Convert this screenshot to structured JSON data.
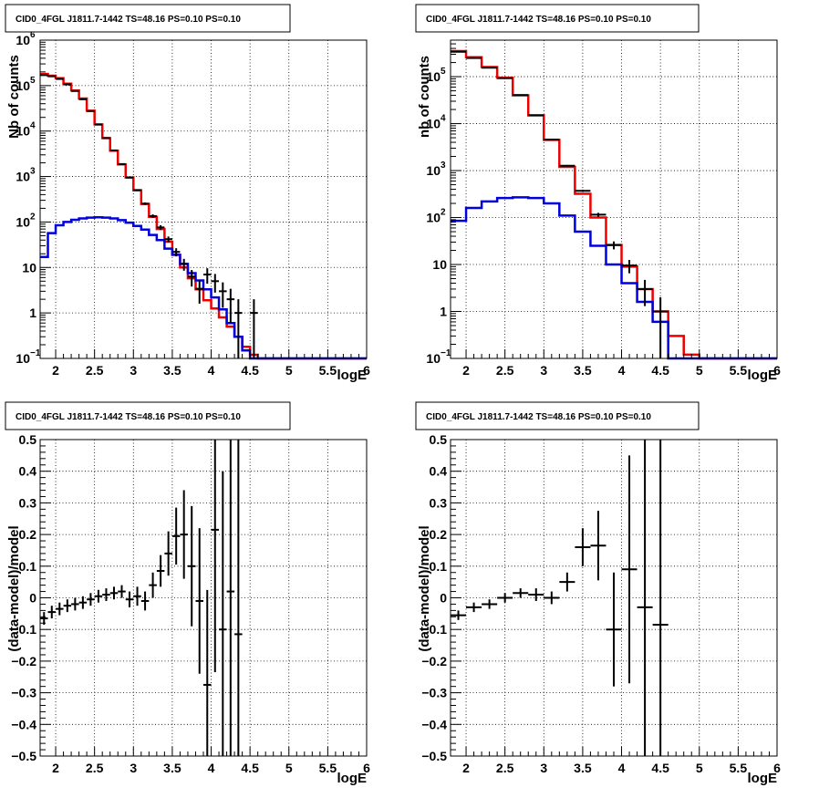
{
  "chart_data": [
    {
      "panel": "top-left",
      "type": "line",
      "title": "CID0_4FGL J1811.7-1442 TS=48.16 PS=0.10 PS=0.10",
      "xlabel": "logE",
      "ylabel": "Nb of counts",
      "log_y": true,
      "grid": true,
      "xlim": [
        1.8,
        6.0
      ],
      "ylim": [
        0.1,
        1000000
      ],
      "x_ticks": [
        "2",
        "2.5",
        "3",
        "3.5",
        "4",
        "4.5",
        "5",
        "5.5",
        "6"
      ],
      "y_ticks": [
        {
          "v": 0.1,
          "base": "10",
          "exp": "−1"
        },
        {
          "v": 1,
          "base": "1",
          "exp": ""
        },
        {
          "v": 10,
          "base": "10",
          "exp": ""
        },
        {
          "v": 100,
          "base": "10",
          "exp": "2"
        },
        {
          "v": 1000,
          "base": "10",
          "exp": "3"
        },
        {
          "v": 10000,
          "base": "10",
          "exp": "4"
        },
        {
          "v": 100000,
          "base": "10",
          "exp": "5"
        },
        {
          "v": 1000000,
          "base": "10",
          "exp": "6"
        }
      ],
      "bin_edges": [
        1.8,
        1.9,
        2.0,
        2.1,
        2.2,
        2.3,
        2.4,
        2.5,
        2.6,
        2.7,
        2.8,
        2.9,
        3.0,
        3.1,
        3.2,
        3.3,
        3.4,
        3.5,
        3.6,
        3.7,
        3.8,
        3.9,
        4.0,
        4.1,
        4.2,
        4.3,
        4.4,
        4.5,
        4.6,
        4.7,
        4.8,
        4.9,
        5.0,
        5.1,
        5.2,
        5.3,
        5.4,
        5.5,
        5.6,
        5.7,
        5.8,
        5.9,
        6.0
      ],
      "series": [
        {
          "color": "#ee0000",
          "values": [
            180000,
            165000,
            145000,
            110000,
            78000,
            52000,
            28000,
            14000,
            7000,
            3700,
            1850,
            950,
            500,
            250,
            130,
            70,
            37,
            19,
            10,
            5.8,
            3.3,
            1.9,
            1.25,
            0.8,
            0.5,
            0.3,
            0.18,
            0.12,
            0.1,
            0.1,
            0.1,
            0.1,
            0.1,
            0.1,
            0.1,
            0.1,
            0.1,
            0.1,
            0.1,
            0.1,
            0.1,
            0.1
          ]
        },
        {
          "color": "#0000dd",
          "values": [
            17,
            57,
            85,
            100,
            112,
            120,
            125,
            127,
            125,
            120,
            110,
            97,
            82,
            68,
            52,
            40,
            26,
            19,
            12,
            7.5,
            5.2,
            3.3,
            2.2,
            1.2,
            0.6,
            0.3,
            0.15,
            0.1,
            0.1,
            0.1,
            0.1,
            0.1,
            0.1,
            0.1,
            0.1,
            0.1,
            0.1,
            0.1,
            0.1,
            0.1,
            0.1,
            0.1
          ]
        }
      ],
      "data_points": [
        {
          "x": 1.85,
          "y": 170000,
          "lo": 166000,
          "hi": 174000
        },
        {
          "x": 1.95,
          "y": 160000,
          "lo": 156000,
          "hi": 164000
        },
        {
          "x": 2.05,
          "y": 140000,
          "lo": 137000,
          "hi": 143000
        },
        {
          "x": 2.15,
          "y": 106000,
          "lo": 104000,
          "hi": 108000
        },
        {
          "x": 2.25,
          "y": 76000,
          "lo": 74500,
          "hi": 77500
        },
        {
          "x": 2.35,
          "y": 50000,
          "lo": 49000,
          "hi": 51000
        },
        {
          "x": 2.45,
          "y": 27500,
          "lo": 27000,
          "hi": 28000
        },
        {
          "x": 2.55,
          "y": 13900,
          "lo": 13700,
          "hi": 14100
        },
        {
          "x": 2.65,
          "y": 7000,
          "lo": 6900,
          "hi": 7100
        },
        {
          "x": 2.75,
          "y": 3750,
          "lo": 3680,
          "hi": 3820
        },
        {
          "x": 2.85,
          "y": 1880,
          "lo": 1840,
          "hi": 1920
        },
        {
          "x": 2.95,
          "y": 950,
          "lo": 920,
          "hi": 980
        },
        {
          "x": 3.05,
          "y": 503,
          "lo": 480,
          "hi": 525
        },
        {
          "x": 3.15,
          "y": 253,
          "lo": 237,
          "hi": 269
        },
        {
          "x": 3.25,
          "y": 135,
          "lo": 123,
          "hi": 147
        },
        {
          "x": 3.35,
          "y": 76,
          "lo": 67,
          "hi": 85
        },
        {
          "x": 3.45,
          "y": 42,
          "lo": 36,
          "hi": 48
        },
        {
          "x": 3.55,
          "y": 22,
          "lo": 17.5,
          "hi": 26.5
        },
        {
          "x": 3.65,
          "y": 12,
          "lo": 8.5,
          "hi": 15.5
        },
        {
          "x": 3.75,
          "y": 6.3,
          "lo": 3.8,
          "hi": 8.8
        },
        {
          "x": 3.85,
          "y": 3.4,
          "lo": 1.6,
          "hi": 5.2
        },
        {
          "x": 3.95,
          "y": 7,
          "lo": 4.4,
          "hi": 9.6
        },
        {
          "x": 4.05,
          "y": 5,
          "lo": 2.8,
          "hi": 7.2
        },
        {
          "x": 4.15,
          "y": 3,
          "lo": 1.3,
          "hi": 4.7
        },
        {
          "x": 4.25,
          "y": 2,
          "lo": 0.6,
          "hi": 3.4
        },
        {
          "x": 4.35,
          "y": 1,
          "lo": 0.1,
          "hi": 2.0
        },
        {
          "x": 4.55,
          "y": 1,
          "lo": 0.1,
          "hi": 2.0
        }
      ]
    },
    {
      "panel": "top-right",
      "type": "line",
      "title": "CID0_4FGL J1811.7-1442 TS=48.16 PS=0.10 PS=0.10",
      "xlabel": "logE",
      "ylabel": "nb of counts",
      "log_y": true,
      "grid": true,
      "xlim": [
        1.8,
        6.0
      ],
      "ylim": [
        0.1,
        600000
      ],
      "x_ticks": [
        "2",
        "2.5",
        "3",
        "3.5",
        "4",
        "4.5",
        "5",
        "5.5",
        "6"
      ],
      "y_ticks": [
        {
          "v": 0.1,
          "base": "10",
          "exp": "−1"
        },
        {
          "v": 1,
          "base": "1",
          "exp": ""
        },
        {
          "v": 10,
          "base": "10",
          "exp": ""
        },
        {
          "v": 100,
          "base": "10",
          "exp": "2"
        },
        {
          "v": 1000,
          "base": "10",
          "exp": "3"
        },
        {
          "v": 10000,
          "base": "10",
          "exp": "4"
        },
        {
          "v": 100000,
          "base": "10",
          "exp": "5"
        }
      ],
      "bin_edges": [
        1.8,
        2.0,
        2.2,
        2.4,
        2.6,
        2.8,
        3.0,
        3.2,
        3.4,
        3.6,
        3.8,
        4.0,
        4.2,
        4.4,
        4.6,
        4.8,
        5.0,
        5.2,
        5.4,
        5.6,
        5.8,
        6.0
      ],
      "series": [
        {
          "color": "#ee0000",
          "values": [
            350000,
            260000,
            160000,
            95000,
            40000,
            15000,
            4500,
            1200,
            320,
            100,
            26,
            9,
            3,
            1,
            0.3,
            0.12,
            0.1,
            0.1,
            0.1,
            0.1,
            0.1
          ]
        },
        {
          "color": "#0000dd",
          "values": [
            85,
            160,
            220,
            260,
            270,
            260,
            200,
            110,
            50,
            25,
            10,
            4,
            1.6,
            0.6,
            0.1,
            0.1,
            0.1,
            0.1,
            0.1,
            0.1,
            0.1
          ]
        }
      ],
      "data_points": [
        {
          "x": 1.9,
          "y": 340000,
          "lo": 336000,
          "hi": 344000
        },
        {
          "x": 2.1,
          "y": 250000,
          "lo": 247000,
          "hi": 253000
        },
        {
          "x": 2.3,
          "y": 155000,
          "lo": 153000,
          "hi": 157000
        },
        {
          "x": 2.5,
          "y": 93000,
          "lo": 91500,
          "hi": 94500
        },
        {
          "x": 2.7,
          "y": 40500,
          "lo": 40000,
          "hi": 41000
        },
        {
          "x": 2.9,
          "y": 15100,
          "lo": 14900,
          "hi": 15300
        },
        {
          "x": 3.1,
          "y": 4550,
          "lo": 4450,
          "hi": 4650
        },
        {
          "x": 3.3,
          "y": 1270,
          "lo": 1220,
          "hi": 1320
        },
        {
          "x": 3.5,
          "y": 370,
          "lo": 350,
          "hi": 390
        },
        {
          "x": 3.7,
          "y": 115,
          "lo": 104,
          "hi": 126
        },
        {
          "x": 3.9,
          "y": 26,
          "lo": 21,
          "hi": 31
        },
        {
          "x": 4.1,
          "y": 9.5,
          "lo": 6.5,
          "hi": 12.5
        },
        {
          "x": 4.3,
          "y": 3,
          "lo": 1.3,
          "hi": 4.7
        },
        {
          "x": 4.5,
          "y": 1,
          "lo": 0.1,
          "hi": 2.0
        }
      ]
    },
    {
      "panel": "bottom-left",
      "type": "scatter",
      "title": "CID0_4FGL J1811.7-1442 TS=48.16 PS=0.10 PS=0.10",
      "xlabel": "logE",
      "ylabel": "(data-model)/model",
      "grid": true,
      "xlim": [
        1.8,
        6.0
      ],
      "ylim": [
        -0.5,
        0.5
      ],
      "x_ticks": [
        "2",
        "2.5",
        "3",
        "3.5",
        "4",
        "4.5",
        "5",
        "5.5",
        "6"
      ],
      "y_ticks": [
        "−0.5",
        "−0.4",
        "−0.3",
        "−0.2",
        "−0.1",
        "0",
        "0.1",
        "0.2",
        "0.3",
        "0.4",
        "0.5"
      ],
      "points": [
        {
          "x": 1.85,
          "y": -0.065,
          "err": 0.02,
          "half_width": 0.05
        },
        {
          "x": 1.95,
          "y": -0.045,
          "err": 0.02,
          "half_width": 0.05
        },
        {
          "x": 2.05,
          "y": -0.035,
          "err": 0.02,
          "half_width": 0.05
        },
        {
          "x": 2.15,
          "y": -0.025,
          "err": 0.02,
          "half_width": 0.05
        },
        {
          "x": 2.25,
          "y": -0.02,
          "err": 0.02,
          "half_width": 0.05
        },
        {
          "x": 2.35,
          "y": -0.015,
          "err": 0.02,
          "half_width": 0.05
        },
        {
          "x": 2.45,
          "y": -0.005,
          "err": 0.02,
          "half_width": 0.05
        },
        {
          "x": 2.55,
          "y": 0.005,
          "err": 0.02,
          "half_width": 0.05
        },
        {
          "x": 2.65,
          "y": 0.01,
          "err": 0.02,
          "half_width": 0.05
        },
        {
          "x": 2.75,
          "y": 0.015,
          "err": 0.02,
          "half_width": 0.05
        },
        {
          "x": 2.85,
          "y": 0.02,
          "err": 0.02,
          "half_width": 0.05
        },
        {
          "x": 2.95,
          "y": -0.005,
          "err": 0.025,
          "half_width": 0.05
        },
        {
          "x": 3.05,
          "y": 0.005,
          "err": 0.03,
          "half_width": 0.05
        },
        {
          "x": 3.15,
          "y": -0.01,
          "err": 0.03,
          "half_width": 0.05
        },
        {
          "x": 3.25,
          "y": 0.04,
          "err": 0.04,
          "half_width": 0.05
        },
        {
          "x": 3.35,
          "y": 0.085,
          "err": 0.05,
          "half_width": 0.05
        },
        {
          "x": 3.45,
          "y": 0.14,
          "err": 0.07,
          "half_width": 0.05
        },
        {
          "x": 3.55,
          "y": 0.195,
          "err": 0.09,
          "half_width": 0.05
        },
        {
          "x": 3.65,
          "y": 0.2,
          "err": 0.14,
          "half_width": 0.05
        },
        {
          "x": 3.75,
          "y": 0.1,
          "err": 0.19,
          "half_width": 0.05
        },
        {
          "x": 3.85,
          "y": -0.01,
          "err": 0.23,
          "half_width": 0.05
        },
        {
          "x": 3.95,
          "y": -0.275,
          "err": 0.3,
          "half_width": 0.05
        },
        {
          "x": 4.05,
          "y": 0.215,
          "err": 0.45,
          "half_width": 0.05
        },
        {
          "x": 4.15,
          "y": -0.1,
          "err": 0.5,
          "half_width": 0.05
        },
        {
          "x": 4.25,
          "y": 0.02,
          "err": 0.6,
          "half_width": 0.05
        },
        {
          "x": 4.35,
          "y": -0.115,
          "err": 0.8,
          "half_width": 0.05
        }
      ]
    },
    {
      "panel": "bottom-right",
      "type": "scatter",
      "title": "CID0_4FGL J1811.7-1442 TS=48.16 PS=0.10 PS=0.10",
      "xlabel": "logE",
      "ylabel": "(data-model)/model",
      "grid": true,
      "xlim": [
        1.8,
        6.0
      ],
      "ylim": [
        -0.5,
        0.5
      ],
      "x_ticks": [
        "2",
        "2.5",
        "3",
        "3.5",
        "4",
        "4.5",
        "5",
        "5.5",
        "6"
      ],
      "y_ticks": [
        "−0.5",
        "−0.4",
        "−0.3",
        "−0.2",
        "−0.1",
        "0",
        "0.1",
        "0.2",
        "0.3",
        "0.4",
        "0.5"
      ],
      "points": [
        {
          "x": 1.9,
          "y": -0.055,
          "err": 0.015,
          "half_width": 0.1
        },
        {
          "x": 2.1,
          "y": -0.03,
          "err": 0.015,
          "half_width": 0.1
        },
        {
          "x": 2.3,
          "y": -0.02,
          "err": 0.015,
          "half_width": 0.1
        },
        {
          "x": 2.5,
          "y": 0.0,
          "err": 0.015,
          "half_width": 0.1
        },
        {
          "x": 2.7,
          "y": 0.015,
          "err": 0.015,
          "half_width": 0.1
        },
        {
          "x": 2.9,
          "y": 0.01,
          "err": 0.02,
          "half_width": 0.1
        },
        {
          "x": 3.1,
          "y": 0.0,
          "err": 0.02,
          "half_width": 0.1
        },
        {
          "x": 3.3,
          "y": 0.05,
          "err": 0.03,
          "half_width": 0.1
        },
        {
          "x": 3.5,
          "y": 0.16,
          "err": 0.06,
          "half_width": 0.1
        },
        {
          "x": 3.7,
          "y": 0.165,
          "err": 0.11,
          "half_width": 0.1
        },
        {
          "x": 3.9,
          "y": -0.1,
          "err": 0.18,
          "half_width": 0.1
        },
        {
          "x": 4.1,
          "y": 0.09,
          "err": 0.36,
          "half_width": 0.1
        },
        {
          "x": 4.3,
          "y": -0.03,
          "err": 0.6,
          "half_width": 0.1
        },
        {
          "x": 4.5,
          "y": -0.085,
          "err": 0.7,
          "half_width": 0.1
        }
      ]
    }
  ]
}
